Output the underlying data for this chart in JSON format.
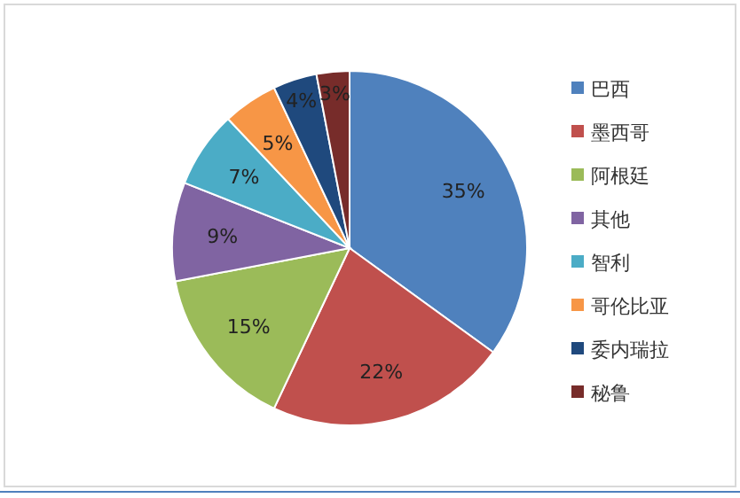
{
  "chart_data": {
    "type": "pie",
    "categories": [
      "巴西",
      "墨西哥",
      "阿根廷",
      "其他",
      "智利",
      "哥伦比亚",
      "委内瑞拉",
      "秘鲁"
    ],
    "values": [
      35,
      22,
      15,
      9,
      7,
      5,
      4,
      3
    ],
    "value_labels": [
      "35%",
      "22%",
      "15%",
      "9%",
      "7%",
      "5%",
      "4%",
      "3%"
    ],
    "colors": [
      "#4f81bd",
      "#c0504d",
      "#9bbb59",
      "#8064a2",
      "#4bacc6",
      "#f79646",
      "#1f497d",
      "#772c2a"
    ],
    "legend": "right"
  }
}
